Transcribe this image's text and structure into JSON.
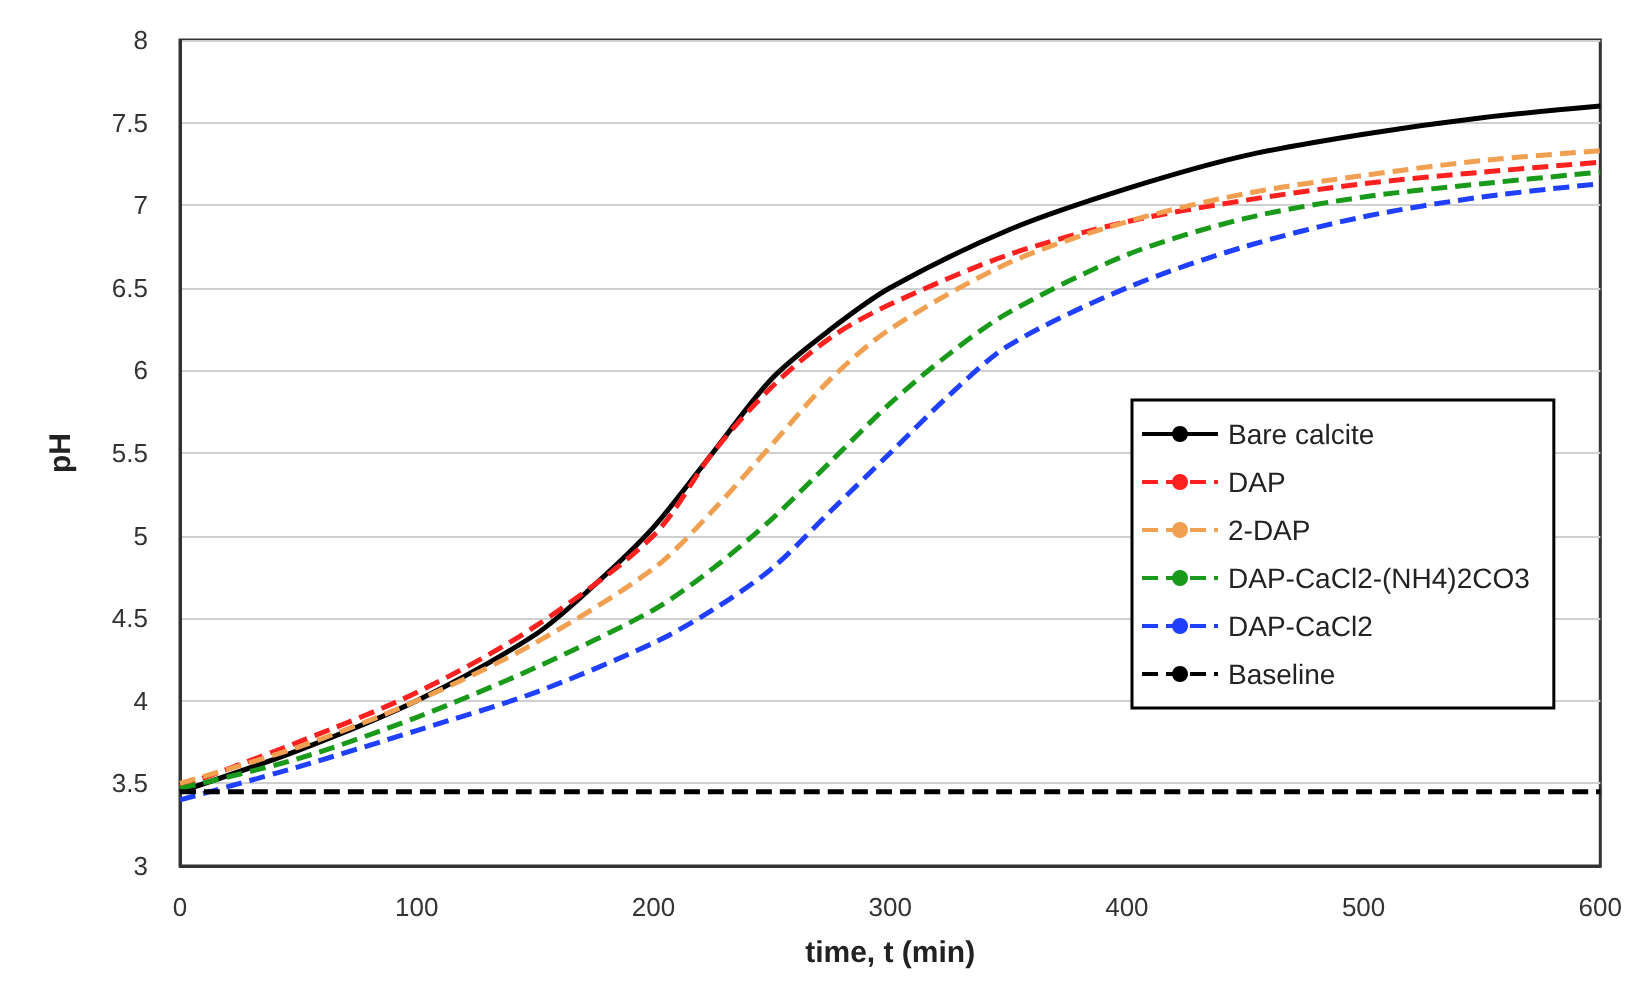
{
  "chart_data": {
    "type": "line",
    "xlabel": "time, t (min)",
    "ylabel": "pH",
    "xlim": [
      0,
      600
    ],
    "xticks": [
      0,
      100,
      200,
      300,
      400,
      500,
      600
    ],
    "ylim": [
      3,
      8
    ],
    "yticks": [
      3,
      3.5,
      4,
      4.5,
      5,
      5.5,
      6,
      6.5,
      7,
      7.5,
      8
    ],
    "grid": "y",
    "legend": "right",
    "marker": "none",
    "series": [
      {
        "name": "Bare calcite",
        "color": "#000000",
        "line_style": "solid",
        "x": [
          0,
          50,
          100,
          150,
          175,
          200,
          225,
          250,
          275,
          300,
          350,
          400,
          450,
          500,
          550,
          600
        ],
        "values": [
          3.45,
          3.7,
          4.0,
          4.4,
          4.7,
          5.05,
          5.5,
          5.95,
          6.25,
          6.5,
          6.85,
          7.1,
          7.3,
          7.43,
          7.53,
          7.6
        ]
      },
      {
        "name": "DAP",
        "color": "#ff2020",
        "line_style": "dashed",
        "x": [
          0,
          50,
          100,
          150,
          200,
          225,
          250,
          275,
          300,
          350,
          400,
          450,
          500,
          550,
          600
        ],
        "values": [
          3.48,
          3.75,
          4.05,
          4.45,
          5.0,
          5.5,
          5.9,
          6.2,
          6.4,
          6.7,
          6.9,
          7.03,
          7.13,
          7.2,
          7.26
        ]
      },
      {
        "name": "2-DAP",
        "color": "#f0a050",
        "line_style": "dashed",
        "x": [
          0,
          50,
          100,
          150,
          200,
          225,
          250,
          275,
          300,
          350,
          400,
          450,
          500,
          550,
          600
        ],
        "values": [
          3.5,
          3.72,
          4.0,
          4.35,
          4.8,
          5.15,
          5.55,
          5.95,
          6.25,
          6.65,
          6.9,
          7.07,
          7.18,
          7.27,
          7.33
        ]
      },
      {
        "name": "DAP-CaCl2-(NH4)2CO3",
        "color": "#1a9a1a",
        "line_style": "dashed",
        "x": [
          0,
          50,
          100,
          150,
          200,
          225,
          250,
          275,
          300,
          325,
          350,
          400,
          450,
          500,
          550,
          600
        ],
        "values": [
          3.47,
          3.65,
          3.9,
          4.2,
          4.55,
          4.8,
          5.1,
          5.45,
          5.8,
          6.1,
          6.35,
          6.7,
          6.92,
          7.05,
          7.13,
          7.2
        ]
      },
      {
        "name": "DAP-CaCl2",
        "color": "#2040ff",
        "line_style": "dashed",
        "x": [
          0,
          50,
          100,
          150,
          200,
          225,
          250,
          275,
          300,
          325,
          350,
          400,
          450,
          500,
          550,
          600
        ],
        "values": [
          3.4,
          3.6,
          3.82,
          4.05,
          4.35,
          4.55,
          4.8,
          5.15,
          5.5,
          5.85,
          6.15,
          6.5,
          6.75,
          6.93,
          7.05,
          7.13
        ]
      },
      {
        "name": "Baseline",
        "color": "#000000",
        "line_style": "dashed",
        "x": [
          0,
          600
        ],
        "values": [
          3.45,
          3.45
        ]
      }
    ]
  }
}
